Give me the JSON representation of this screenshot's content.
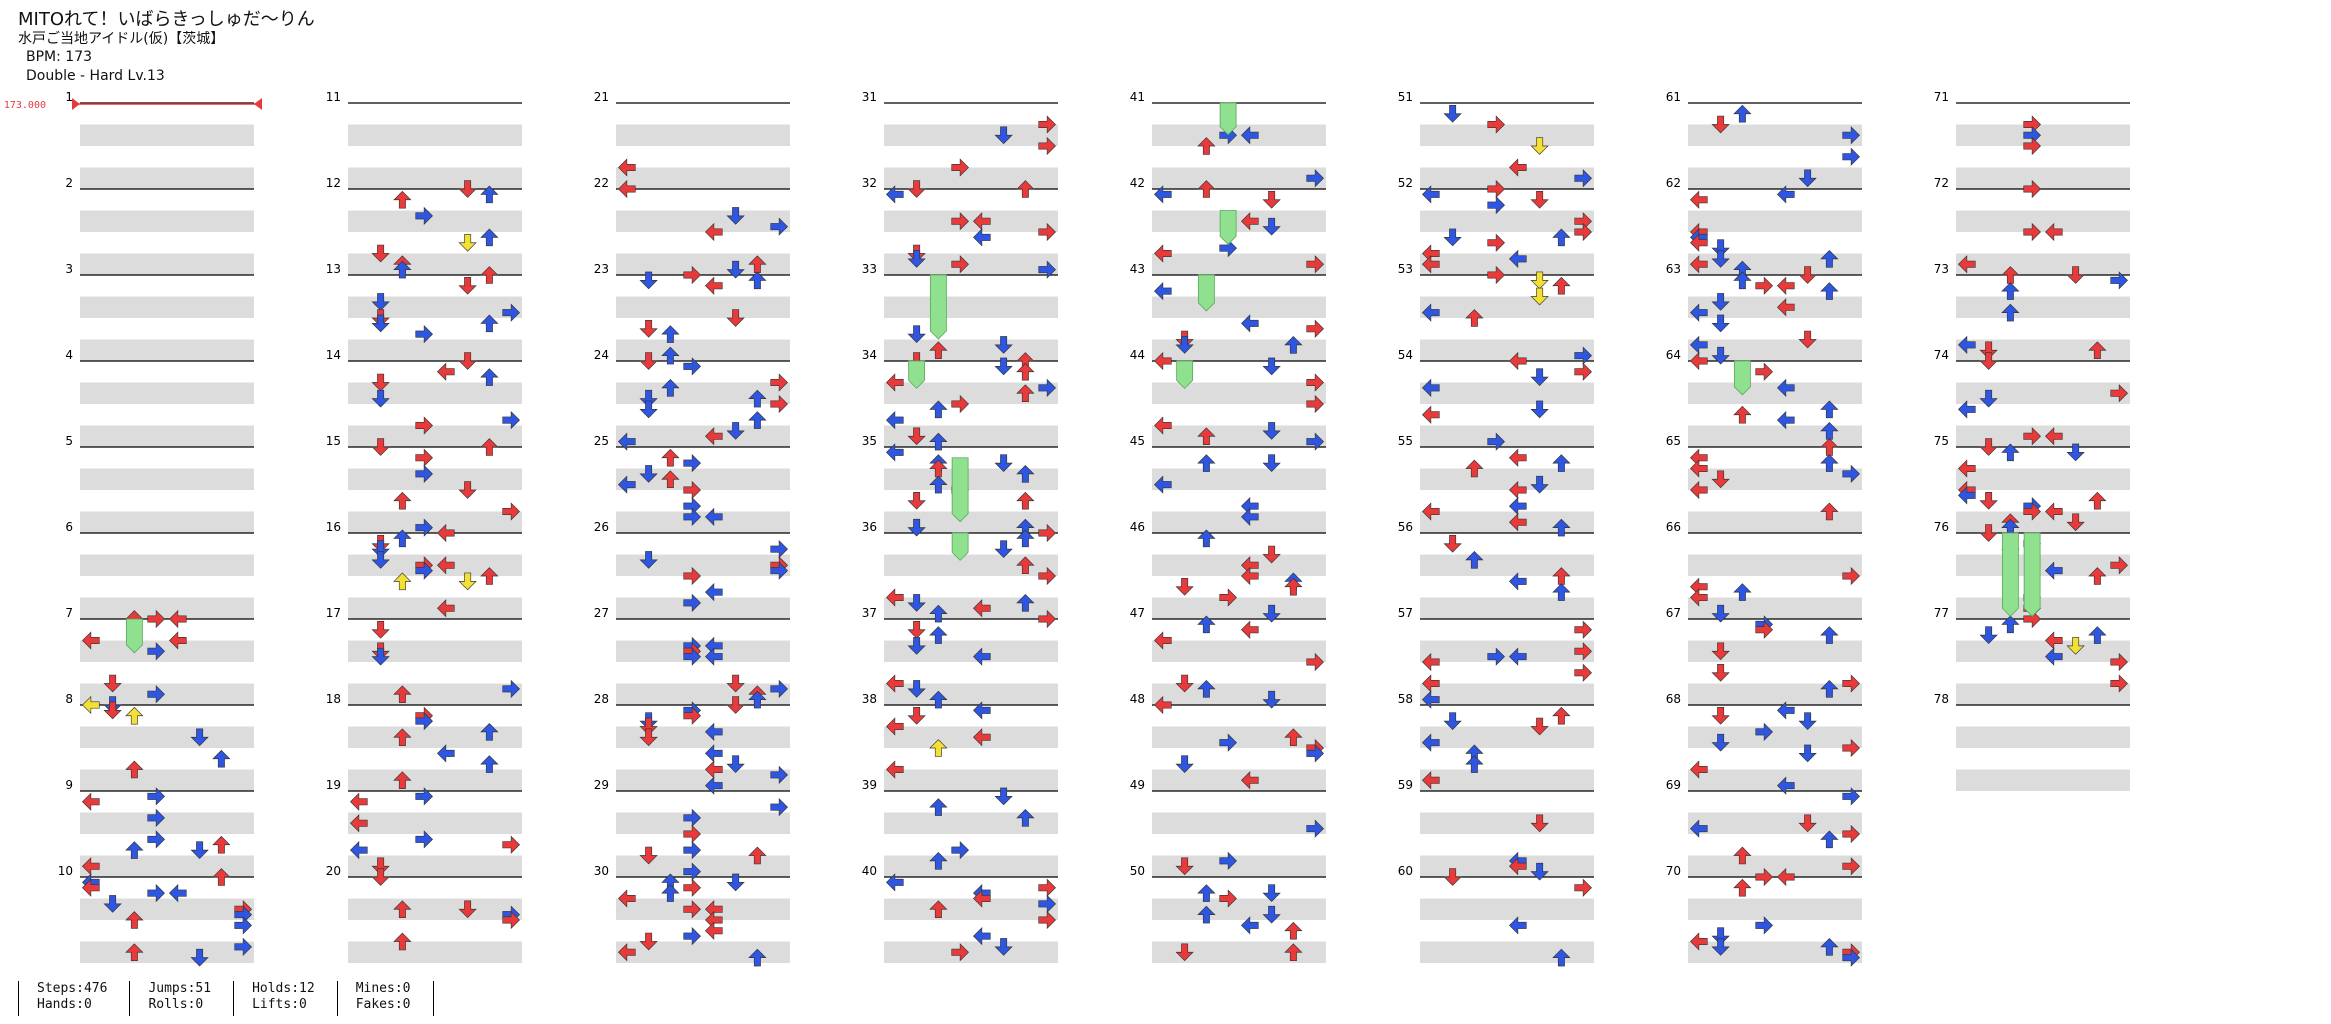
{
  "song": {
    "title": "MITOれて！いばらきっしゅだ～りん",
    "artist": "水戸ご当地アイドル(仮)【茨城】",
    "bpm_label": "BPM: 173",
    "difficulty_label": "Double - Hard  Lv.13"
  },
  "bpm_marker": "173.000",
  "measures": {
    "count": 78,
    "numbers": [
      "1",
      "2",
      "3",
      "4",
      "5",
      "6",
      "7",
      "8",
      "9",
      "10",
      "11",
      "12",
      "13",
      "14",
      "15",
      "16",
      "17",
      "18",
      "19",
      "20",
      "21",
      "22",
      "23",
      "24",
      "25",
      "26",
      "27",
      "28",
      "29",
      "30",
      "31",
      "32",
      "33",
      "34",
      "35",
      "36",
      "37",
      "38",
      "39",
      "40",
      "41",
      "42",
      "43",
      "44",
      "45",
      "46",
      "47",
      "48",
      "49",
      "50",
      "51",
      "52",
      "53",
      "54",
      "55",
      "56",
      "57",
      "58",
      "59",
      "60",
      "61",
      "62",
      "63",
      "64",
      "65",
      "66",
      "67",
      "68",
      "69",
      "70",
      "71",
      "72",
      "73",
      "74",
      "75",
      "76",
      "77",
      "78"
    ]
  },
  "stats": [
    {
      "a": "Steps:476",
      "b": "Hands:0"
    },
    {
      "a": "Jumps:51",
      "b": "Rolls:0"
    },
    {
      "a": "Holds:12",
      "b": "Lifts:0"
    },
    {
      "a": "Mines:0",
      "b": "Fakes:0"
    }
  ],
  "colors": {
    "red": "#e83a3a",
    "blue": "#2e56e0",
    "yellow": "#f3e035",
    "hold": "#8fe08f",
    "band": "#dcdcdc"
  },
  "icons": [
    "arrow-left-icon",
    "arrow-down-icon",
    "arrow-up-icon",
    "arrow-right-icon"
  ]
}
